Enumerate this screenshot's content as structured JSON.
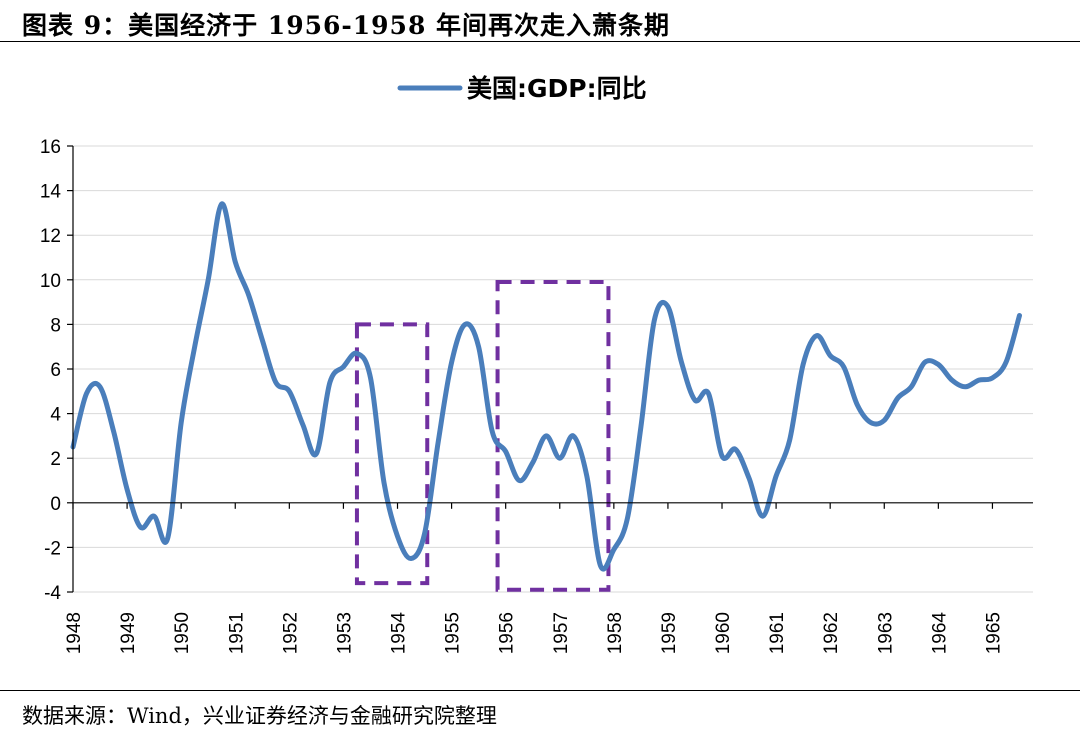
{
  "figure": {
    "title": "图表 9：美国经济于 1956-1958 年间再次走入萧条期",
    "source": "数据来源：Wind，兴业证券经济与金融研究院整理"
  },
  "colors": {
    "series": "#4a7ebb",
    "box": "#7030a0",
    "axis": "#000000",
    "grid": "#d9d9d9"
  },
  "chart_data": {
    "type": "line",
    "title": "",
    "xlabel": "",
    "ylabel": "",
    "ylim": [
      -4,
      16
    ],
    "yticks": [
      -4,
      -2,
      0,
      2,
      4,
      6,
      8,
      10,
      12,
      14,
      16
    ],
    "ytick_labels": [
      "-4",
      "-2",
      "0",
      "2",
      "4",
      "6",
      "8",
      "10",
      "12",
      "14",
      "16"
    ],
    "xlim": [
      1948.0,
      1965.75
    ],
    "xticks": [
      1948,
      1949,
      1950,
      1951,
      1952,
      1953,
      1954,
      1955,
      1956,
      1957,
      1958,
      1959,
      1960,
      1961,
      1962,
      1963,
      1964,
      1965
    ],
    "xtick_labels": [
      "1948",
      "1949",
      "1950",
      "1951",
      "1952",
      "1953",
      "1954",
      "1955",
      "1956",
      "1957",
      "1958",
      "1959",
      "1960",
      "1961",
      "1962",
      "1963",
      "1964",
      "1965"
    ],
    "grid": "horizontal",
    "legend": "top-center",
    "series": [
      {
        "name": "美国:GDP:同比",
        "points": [
          [
            1948.0,
            2.5
          ],
          [
            1948.25,
            4.9
          ],
          [
            1948.5,
            5.2
          ],
          [
            1948.75,
            3.2
          ],
          [
            1949.0,
            0.6
          ],
          [
            1949.25,
            -1.1
          ],
          [
            1949.5,
            -0.6
          ],
          [
            1949.75,
            -1.6
          ],
          [
            1950.0,
            3.6
          ],
          [
            1950.25,
            7.0
          ],
          [
            1950.5,
            10.0
          ],
          [
            1950.75,
            13.4
          ],
          [
            1951.0,
            10.8
          ],
          [
            1951.25,
            9.3
          ],
          [
            1951.5,
            7.3
          ],
          [
            1951.75,
            5.4
          ],
          [
            1952.0,
            5.0
          ],
          [
            1952.25,
            3.5
          ],
          [
            1952.5,
            2.2
          ],
          [
            1952.75,
            5.4
          ],
          [
            1953.0,
            6.1
          ],
          [
            1953.25,
            6.7
          ],
          [
            1953.5,
            5.6
          ],
          [
            1953.75,
            0.9
          ],
          [
            1954.0,
            -1.5
          ],
          [
            1954.25,
            -2.5
          ],
          [
            1954.5,
            -1.4
          ],
          [
            1954.75,
            2.7
          ],
          [
            1955.0,
            6.3
          ],
          [
            1955.25,
            8.0
          ],
          [
            1955.5,
            7.0
          ],
          [
            1955.75,
            3.2
          ],
          [
            1956.0,
            2.3
          ],
          [
            1956.25,
            1.0
          ],
          [
            1956.5,
            1.8
          ],
          [
            1956.75,
            3.0
          ],
          [
            1957.0,
            2.0
          ],
          [
            1957.25,
            3.0
          ],
          [
            1957.5,
            1.2
          ],
          [
            1957.75,
            -2.8
          ],
          [
            1958.0,
            -2.1
          ],
          [
            1958.25,
            -0.7
          ],
          [
            1958.5,
            3.4
          ],
          [
            1958.75,
            8.2
          ],
          [
            1959.0,
            8.8
          ],
          [
            1959.25,
            6.3
          ],
          [
            1959.5,
            4.6
          ],
          [
            1959.75,
            4.9
          ],
          [
            1960.0,
            2.1
          ],
          [
            1960.25,
            2.4
          ],
          [
            1960.5,
            1.1
          ],
          [
            1960.75,
            -0.6
          ],
          [
            1961.0,
            1.2
          ],
          [
            1961.25,
            2.8
          ],
          [
            1961.5,
            6.2
          ],
          [
            1961.75,
            7.5
          ],
          [
            1962.0,
            6.6
          ],
          [
            1962.25,
            6.1
          ],
          [
            1962.5,
            4.4
          ],
          [
            1962.75,
            3.6
          ],
          [
            1963.0,
            3.7
          ],
          [
            1963.25,
            4.7
          ],
          [
            1963.5,
            5.2
          ],
          [
            1963.75,
            6.3
          ],
          [
            1964.0,
            6.2
          ],
          [
            1964.25,
            5.5
          ],
          [
            1964.5,
            5.2
          ],
          [
            1964.75,
            5.5
          ],
          [
            1965.0,
            5.6
          ],
          [
            1965.25,
            6.3
          ],
          [
            1965.5,
            8.4
          ]
        ]
      }
    ],
    "annotations": [
      {
        "type": "dashed-box",
        "x": [
          1953.25,
          1954.55
        ],
        "y": [
          -3.6,
          8.0
        ]
      },
      {
        "type": "dashed-box",
        "x": [
          1955.85,
          1957.9
        ],
        "y": [
          -3.9,
          9.9
        ]
      }
    ]
  }
}
